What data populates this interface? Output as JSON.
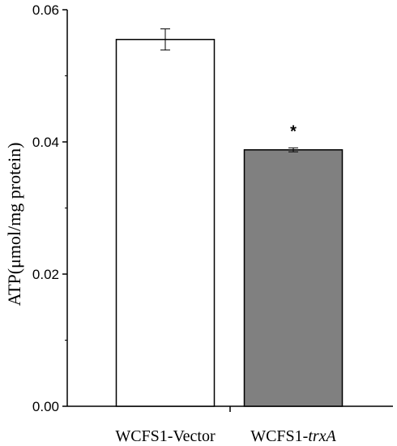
{
  "chart_data": {
    "type": "bar",
    "title": "",
    "xlabel": "",
    "ylabel": "ATP(μmol/mg protein)",
    "ylim": [
      0,
      0.06
    ],
    "yticks": [
      "0.00",
      "0.02",
      "0.04",
      "0.06"
    ],
    "grid": false,
    "categories": [
      {
        "prefix": "WCFS1-",
        "italic": "",
        "full": "WCFS1-Vector",
        "display": "Vector"
      },
      {
        "prefix": "WCFS1-",
        "italic": "trxA",
        "full": "WCFS1-trxA",
        "display": ""
      }
    ],
    "values": [
      0.0555,
      0.0388
    ],
    "errors": [
      0.0016,
      0.0003
    ],
    "colors": [
      "#ffffff",
      "#808080"
    ],
    "annotations": [
      {
        "category_index": 1,
        "text": "*"
      }
    ]
  }
}
